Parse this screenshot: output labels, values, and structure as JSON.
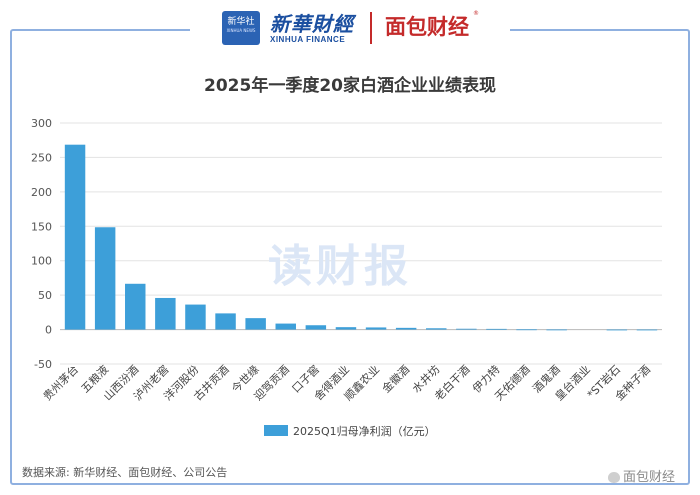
{
  "header": {
    "logo_mark": "新华社",
    "logo_mark_sub": "XINHUA NEWS",
    "brand_xinhua": "新華財經",
    "brand_xinhua_en": "XINHUA FINANCE",
    "brand_mianbao": "面包财经",
    "registered": "®"
  },
  "watermark": "读财报",
  "source": "数据来源: 新华财经、面包财经、公司公告",
  "weibo_handle": "面包财经",
  "colors": {
    "bar": "#3d9fd9",
    "frame": "#8fb0e0",
    "brand_blue": "#1b4fa0",
    "brand_red": "#c42a2a"
  },
  "chart_data": {
    "type": "bar",
    "title": "2025年一季度20家白酒企业业绩表现",
    "categories": [
      "贵州茅台",
      "五粮液",
      "山西汾酒",
      "泸州老窖",
      "洋河股份",
      "古井贡酒",
      "今世缘",
      "迎驾贡酒",
      "口子窖",
      "舍得酒业",
      "顺鑫农业",
      "金徽酒",
      "水井坊",
      "老白干酒",
      "伊力特",
      "天佑德酒",
      "酒鬼酒",
      "皇台酒业",
      "*ST岩石",
      "金种子酒"
    ],
    "series": [
      {
        "name": "2025Q1归母净利润（亿元）",
        "values": [
          268.5,
          148.6,
          66.5,
          45.9,
          36.3,
          23.5,
          16.6,
          8.7,
          6.3,
          3.5,
          3.1,
          2.5,
          1.9,
          1.2,
          1.0,
          0.3,
          0.1,
          0.0,
          -0.3,
          -0.4
        ]
      }
    ],
    "yticks": [
      300,
      250,
      200,
      150,
      100,
      50,
      0,
      -50
    ],
    "ylim": [
      -50,
      300
    ],
    "grid": true,
    "legend_position": "bottom"
  }
}
